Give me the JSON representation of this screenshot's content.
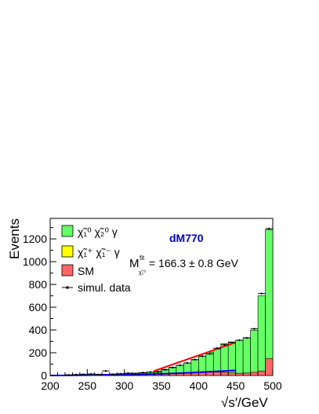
{
  "chart_data": {
    "type": "histogram",
    "title": "",
    "xlabel": "√s′/GeV",
    "ylabel": "Events",
    "xlim": [
      200,
      500
    ],
    "ylim": [
      0,
      1380
    ],
    "bin_width": 10,
    "bin_edges_start": 200,
    "x_ticks": [
      200,
      250,
      300,
      350,
      400,
      450,
      500
    ],
    "y_ticks": [
      0,
      200,
      400,
      600,
      800,
      1000,
      1200
    ],
    "series": [
      {
        "name": "SM",
        "role": "stacked-base",
        "color": "#ff6666",
        "values": [
          0,
          0,
          3,
          5,
          8,
          8,
          6,
          6,
          8,
          10,
          12,
          10,
          10,
          12,
          15,
          15,
          18,
          20,
          25,
          28,
          30,
          35,
          30,
          28,
          25,
          20,
          22,
          28,
          40,
          150
        ]
      },
      {
        "name": "χ̃1⁺ χ̃1⁻ γ",
        "role": "stacked-mid",
        "color": "#ffff00",
        "values": [
          0,
          0,
          0,
          0,
          0,
          0,
          0,
          0,
          0,
          0,
          0,
          0,
          0,
          0,
          0,
          0,
          0,
          0,
          0,
          0,
          0,
          0,
          0,
          0,
          0,
          0,
          0,
          0,
          0,
          0
        ]
      },
      {
        "name": "χ̃1⁰ χ̃2⁰ γ",
        "role": "stacked-top",
        "color": "#66ff66",
        "values": [
          0,
          0,
          2,
          3,
          4,
          5,
          6,
          5,
          6,
          6,
          8,
          12,
          14,
          18,
          25,
          40,
          55,
          70,
          85,
          110,
          140,
          170,
          200,
          250,
          270,
          290,
          310,
          370,
          660,
          1130
        ]
      }
    ],
    "data_points": {
      "name": "simul. data",
      "values": [
        0,
        0,
        5,
        8,
        10,
        12,
        8,
        40,
        10,
        15,
        20,
        15,
        25,
        30,
        30,
        50,
        70,
        90,
        110,
        140,
        170,
        190,
        240,
        270,
        290,
        310,
        330,
        410,
        720,
        1290
      ]
    },
    "blue_curve": {
      "x": [
        200,
        250,
        300,
        350,
        400,
        450
      ],
      "y": [
        0,
        3,
        8,
        15,
        28,
        45
      ],
      "color": "#0000ff"
    },
    "fit_line": {
      "x": [
        340,
        450
      ],
      "y": [
        40,
        290
      ],
      "color": "#ff0000"
    },
    "legend": {
      "placement": "top-left",
      "entries": [
        {
          "label": "χ̃₁⁰ χ̃₂⁰ γ",
          "color": "#66ff66"
        },
        {
          "label": "χ̃₁⁺ χ̃₁⁻ γ",
          "color": "#ffff00"
        },
        {
          "label": "SM",
          "color": "#ff6666"
        },
        {
          "label": "simul. data",
          "color": "#000000"
        }
      ]
    },
    "annotations": {
      "tag": "dM770",
      "tag_color": "#0000cc",
      "fit_label": "Mᴸⁱᵗ  = 166.3 ± 0.8 GeV",
      "fit_symbol": "M",
      "fit_sup": "fit",
      "fit_sub": "χ̃₂⁰",
      "fit_value": "= 166.3 ± 0.8 GeV"
    }
  }
}
